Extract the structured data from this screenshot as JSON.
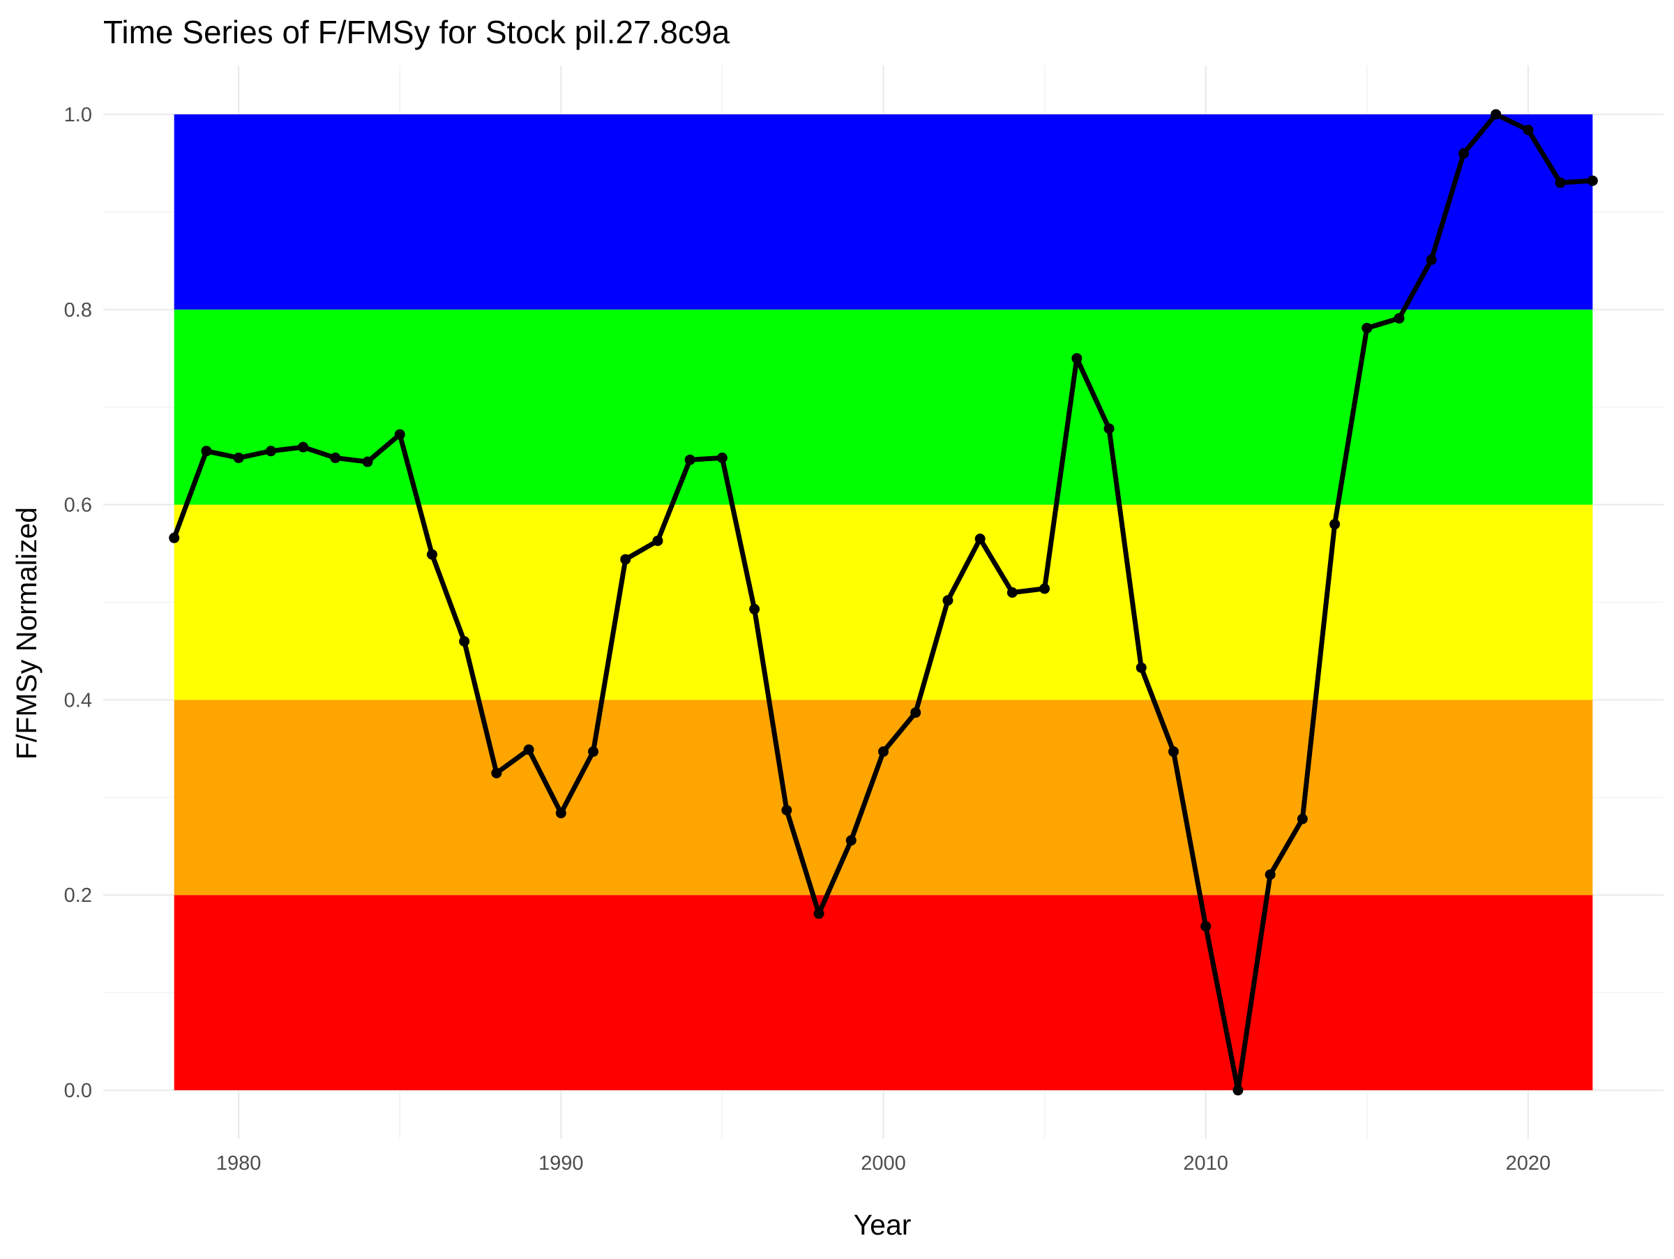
{
  "chart_data": {
    "type": "line",
    "title": "Time Series of F/FMSy for Stock pil.27.8c9a",
    "xlabel": "Year",
    "ylabel": "F/FMSy Normalized",
    "xlim": [
      1975.8,
      2024.2
    ],
    "ylim": [
      -0.05,
      1.05
    ],
    "x_ticks": [
      1980,
      1990,
      2000,
      2010,
      2020
    ],
    "x_tick_labels": [
      "1980",
      "1990",
      "2000",
      "2010",
      "2020"
    ],
    "y_ticks": [
      0.0,
      0.2,
      0.4,
      0.6,
      0.8,
      1.0
    ],
    "y_tick_labels": [
      "0.0",
      "0.2",
      "0.4",
      "0.6",
      "0.8",
      "1.0"
    ],
    "grid": true,
    "background_bands": [
      {
        "ymin": 0.0,
        "ymax": 0.2,
        "color": "#FF0000"
      },
      {
        "ymin": 0.2,
        "ymax": 0.4,
        "color": "#FFA500"
      },
      {
        "ymin": 0.4,
        "ymax": 0.6,
        "color": "#FFFF00"
      },
      {
        "ymin": 0.6,
        "ymax": 0.8,
        "color": "#00FF00"
      },
      {
        "ymin": 0.8,
        "ymax": 1.0,
        "color": "#0000FF"
      }
    ],
    "band_x_range": [
      1978,
      2022
    ],
    "series": [
      {
        "color": "#000000",
        "x": [
          1978,
          1979,
          1980,
          1981,
          1982,
          1983,
          1984,
          1985,
          1986,
          1987,
          1988,
          1989,
          1990,
          1991,
          1992,
          1993,
          1994,
          1995,
          1996,
          1997,
          1998,
          1999,
          2000,
          2001,
          2002,
          2003,
          2004,
          2005,
          2006,
          2007,
          2008,
          2009,
          2010,
          2011,
          2012,
          2013,
          2014,
          2015,
          2016,
          2017,
          2018,
          2019,
          2020,
          2021,
          2022
        ],
        "y": [
          0.566,
          0.655,
          0.648,
          0.655,
          0.659,
          0.648,
          0.644,
          0.672,
          0.549,
          0.46,
          0.325,
          0.349,
          0.284,
          0.347,
          0.544,
          0.563,
          0.646,
          0.648,
          0.493,
          0.287,
          0.181,
          0.256,
          0.347,
          0.387,
          0.502,
          0.565,
          0.51,
          0.514,
          0.75,
          0.678,
          0.433,
          0.347,
          0.168,
          0.0,
          0.221,
          0.278,
          0.58,
          0.781,
          0.791,
          0.851,
          0.96,
          1.0,
          0.984,
          0.93,
          0.932
        ]
      }
    ]
  }
}
